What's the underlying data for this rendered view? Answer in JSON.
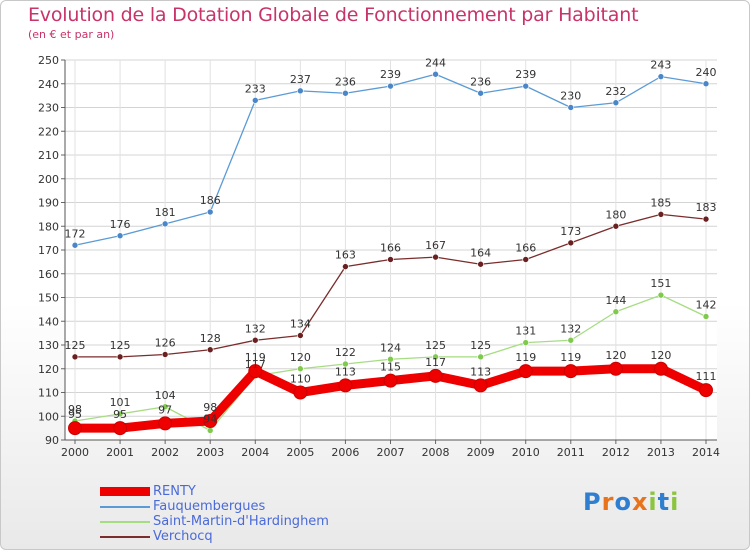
{
  "title": "Evolution de la Dotation Globale de Fonctionnement par Habitant",
  "subtitle": "(en € et par an)",
  "logo": {
    "text": "Proxiti",
    "letter_colors": [
      "#2f7fd0",
      "#e8731b",
      "#2f7fd0",
      "#e8731b",
      "#8bc53f",
      "#2f7fd0",
      "#8bc53f"
    ]
  },
  "chart_data": {
    "type": "line",
    "categories": [
      "2000",
      "2001",
      "2002",
      "2003",
      "2004",
      "2005",
      "2006",
      "2007",
      "2008",
      "2009",
      "2010",
      "2011",
      "2012",
      "2013",
      "2014"
    ],
    "ylim": [
      90,
      250
    ],
    "yticks": [
      90,
      100,
      110,
      120,
      130,
      140,
      150,
      160,
      170,
      180,
      190,
      200,
      210,
      220,
      230,
      240,
      250
    ],
    "grid": true,
    "legend_position": "bottom-left",
    "series": [
      {
        "name": "RENTY",
        "color": "#ee0000",
        "marker": "#ee0000",
        "thick": true,
        "values": [
          95,
          95,
          97,
          98,
          119,
          110,
          113,
          115,
          117,
          113,
          119,
          119,
          120,
          120,
          111
        ],
        "labels": [
          "95",
          "95",
          "97",
          "98",
          "119",
          "110",
          "113",
          "115",
          "117",
          "113",
          "119",
          "119",
          "120",
          "120",
          "111"
        ]
      },
      {
        "name": "Fauquembergues",
        "color": "#5b9bd5",
        "marker": "#4a86c8",
        "values": [
          172,
          176,
          181,
          186,
          233,
          237,
          236,
          239,
          244,
          236,
          239,
          230,
          232,
          243,
          240
        ],
        "labels": [
          "172",
          "176",
          "181",
          "186",
          "233",
          "237",
          "236",
          "239",
          "244",
          "236",
          "239",
          "230",
          "232",
          "243",
          "240"
        ]
      },
      {
        "name": "Saint-Martin-d'Hardinghem",
        "color": "#a6dc82",
        "marker": "#7fc94d",
        "values": [
          98,
          101,
          104,
          94,
          117,
          120,
          122,
          124,
          125,
          125,
          131,
          132,
          144,
          151,
          142
        ],
        "labels": [
          "98",
          "101",
          "104",
          "94",
          "117",
          "120",
          "122",
          "124",
          "125",
          "125",
          "131",
          "132",
          "144",
          "151",
          "142"
        ]
      },
      {
        "name": "Verchocq",
        "color": "#7b2c2c",
        "marker": "#6a2020",
        "values": [
          125,
          125,
          126,
          128,
          132,
          134,
          163,
          166,
          167,
          164,
          166,
          173,
          180,
          185,
          183
        ],
        "labels": [
          "125",
          "125",
          "126",
          "128",
          "132",
          "134",
          "163",
          "166",
          "167",
          "164",
          "166",
          "173",
          "180",
          "185",
          "183"
        ]
      }
    ]
  }
}
